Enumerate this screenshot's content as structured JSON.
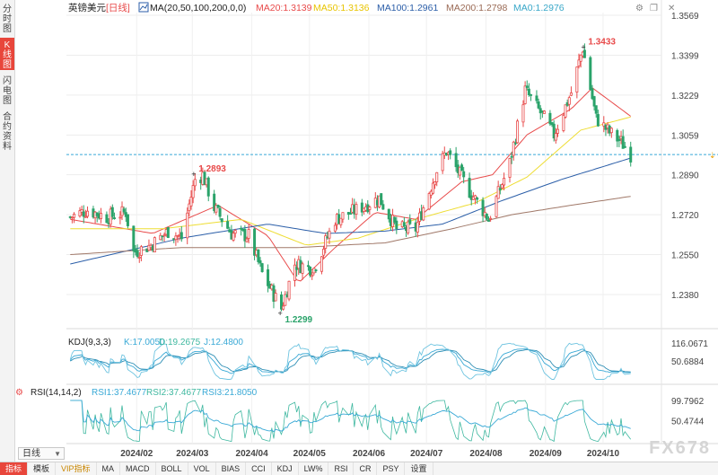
{
  "side_tabs": [
    {
      "label": "分时图",
      "active": false
    },
    {
      "label": "K线图",
      "active": true
    },
    {
      "label": "闪电图",
      "active": false
    },
    {
      "label": "合约资料",
      "active": false
    }
  ],
  "legend": {
    "symbol": "英镑美元",
    "period": "[日线]",
    "ma_params": "MA(20,50,100,200,0,0)",
    "items": [
      {
        "label": "MA20:1.3139",
        "color": "#e84a4a"
      },
      {
        "label": "MA50:1.3136",
        "color": "#e8c400"
      },
      {
        "label": "MA100:1.2961",
        "color": "#2b5ea8"
      },
      {
        "label": "MA200:1.2798",
        "color": "#9a6a55"
      },
      {
        "label": "MA0:1.2976",
        "color": "#38a7c8"
      }
    ]
  },
  "toolbar_icons": [
    "settings-icon",
    "restore-icon",
    "close-icon"
  ],
  "annotations": {
    "high": "1.3433",
    "low": "1.2299",
    "prev_high": "1.2893"
  },
  "colors": {
    "up": "#e84a4a",
    "down": "#2aa36a",
    "ma20": "#e84a4a",
    "ma50": "#eedd33",
    "ma100": "#2b5ea8",
    "ma200": "#a07868",
    "kdj_k": "#39a9d6",
    "kdj_d": "#2f8fb5",
    "kdj_j": "#6fc4e0",
    "rsi1": "#39a9d6",
    "rsi2": "#2f8fb5",
    "rsi3": "#3fb8a0"
  },
  "chart_data": [
    {
      "type": "candlestick",
      "title": "英镑美元 [日线]",
      "ylim": [
        1.238,
        1.3569
      ],
      "y_ticks": [
        "1.3569",
        "1.3399",
        "1.3229",
        "1.3059",
        "1.2890",
        "1.2720",
        "1.2550",
        "1.2380"
      ],
      "x_ticks": [
        "2024/02",
        "2024/03",
        "2024/04",
        "2024/05",
        "2024/06",
        "2024/07",
        "2024/08",
        "2024/09",
        "2024/10"
      ],
      "last_close": 1.2976,
      "close_path": [
        [
          "2024/01/03",
          1.271
        ],
        [
          "2024/01/12",
          1.274
        ],
        [
          "2024/01/22",
          1.271
        ],
        [
          "2024/02/01",
          1.273
        ],
        [
          "2024/02/05",
          1.256
        ],
        [
          "2024/02/14",
          1.259
        ],
        [
          "2024/02/23",
          1.265
        ],
        [
          "2024/03/01",
          1.262
        ],
        [
          "2024/03/08",
          1.287
        ],
        [
          "2024/03/12",
          1.289
        ],
        [
          "2024/03/18",
          1.275
        ],
        [
          "2024/03/27",
          1.264
        ],
        [
          "2024/04/05",
          1.263
        ],
        [
          "2024/04/12",
          1.247
        ],
        [
          "2024/04/22",
          1.232
        ],
        [
          "2024/04/29",
          1.251
        ],
        [
          "2024/05/09",
          1.249
        ],
        [
          "2024/05/20",
          1.27
        ],
        [
          "2024/05/31",
          1.274
        ],
        [
          "2024/06/12",
          1.279
        ],
        [
          "2024/06/21",
          1.266
        ],
        [
          "2024/07/01",
          1.266
        ],
        [
          "2024/07/12",
          1.291
        ],
        [
          "2024/07/17",
          1.299
        ],
        [
          "2024/07/29",
          1.282
        ],
        [
          "2024/08/05",
          1.274
        ],
        [
          "2024/08/08",
          1.27
        ],
        [
          "2024/08/19",
          1.294
        ],
        [
          "2024/08/27",
          1.325
        ],
        [
          "2024/09/06",
          1.313
        ],
        [
          "2024/09/11",
          1.306
        ],
        [
          "2024/09/20",
          1.324
        ],
        [
          "2024/09/26",
          1.343
        ],
        [
          "2024/10/03",
          1.313
        ],
        [
          "2024/10/10",
          1.307
        ],
        [
          "2024/10/16",
          1.303
        ],
        [
          "2024/10/21",
          1.2976
        ]
      ],
      "ma_path": {
        "MA20": [
          [
            "2024/01/03",
            1.27
          ],
          [
            "2024/02/15",
            1.264
          ],
          [
            "2024/03/20",
            1.276
          ],
          [
            "2024/04/15",
            1.263
          ],
          [
            "2024/05/01",
            1.243
          ],
          [
            "2024/05/20",
            1.258
          ],
          [
            "2024/06/10",
            1.273
          ],
          [
            "2024/07/01",
            1.27
          ],
          [
            "2024/07/25",
            1.286
          ],
          [
            "2024/08/10",
            1.289
          ],
          [
            "2024/08/28",
            1.306
          ],
          [
            "2024/09/20",
            1.317
          ],
          [
            "2024/10/01",
            1.326
          ],
          [
            "2024/10/21",
            1.3139
          ]
        ],
        "MA50": [
          [
            "2024/01/03",
            1.266
          ],
          [
            "2024/02/20",
            1.266
          ],
          [
            "2024/04/01",
            1.27
          ],
          [
            "2024/05/05",
            1.259
          ],
          [
            "2024/06/01",
            1.262
          ],
          [
            "2024/07/01",
            1.27
          ],
          [
            "2024/08/01",
            1.277
          ],
          [
            "2024/08/28",
            1.288
          ],
          [
            "2024/09/25",
            1.308
          ],
          [
            "2024/10/21",
            1.3136
          ]
        ],
        "MA100": [
          [
            "2024/01/03",
            1.251
          ],
          [
            "2024/03/01",
            1.262
          ],
          [
            "2024/04/15",
            1.268
          ],
          [
            "2024/05/15",
            1.264
          ],
          [
            "2024/06/15",
            1.265
          ],
          [
            "2024/07/15",
            1.268
          ],
          [
            "2024/08/15",
            1.278
          ],
          [
            "2024/09/15",
            1.287
          ],
          [
            "2024/10/21",
            1.2961
          ]
        ],
        "MA200": [
          [
            "2024/01/03",
            1.255
          ],
          [
            "2024/03/01",
            1.258
          ],
          [
            "2024/05/01",
            1.258
          ],
          [
            "2024/06/15",
            1.26
          ],
          [
            "2024/07/20",
            1.266
          ],
          [
            "2024/08/20",
            1.272
          ],
          [
            "2024/09/20",
            1.276
          ],
          [
            "2024/10/21",
            1.2798
          ]
        ]
      }
    },
    {
      "type": "line",
      "title": "KDJ(9,3,3)",
      "legend": [
        {
          "name": "K:17.0050"
        },
        {
          "name": "D:19.2675"
        },
        {
          "name": "J:12.4800"
        }
      ],
      "y_ticks": [
        "116.0671",
        "50.6884"
      ],
      "ylim": [
        -20,
        116.0671
      ]
    },
    {
      "type": "line",
      "title": "RSI(14,14,2)",
      "legend": [
        {
          "name": "RSI1:37.4677"
        },
        {
          "name": "RSI2:37.4677"
        },
        {
          "name": "RSI3:21.8050"
        }
      ],
      "y_ticks": [
        "99.7962",
        "50.4744"
      ],
      "ylim": [
        0,
        99.7962
      ]
    }
  ],
  "bottom_tabs": [
    {
      "label": "指标",
      "active": true,
      "vip": false
    },
    {
      "label": "模板",
      "active": false,
      "vip": false
    },
    {
      "label": "VIP指标",
      "active": false,
      "vip": true
    },
    {
      "label": "MA",
      "active": false,
      "vip": false
    },
    {
      "label": "MACD",
      "active": false,
      "vip": false
    },
    {
      "label": "BOLL",
      "active": false,
      "vip": false
    },
    {
      "label": "VOL",
      "active": false,
      "vip": false
    },
    {
      "label": "BIAS",
      "active": false,
      "vip": false
    },
    {
      "label": "CCI",
      "active": false,
      "vip": false
    },
    {
      "label": "KDJ",
      "active": false,
      "vip": false
    },
    {
      "label": "LW%",
      "active": false,
      "vip": false
    },
    {
      "label": "RSI",
      "active": false,
      "vip": false
    },
    {
      "label": "CR",
      "active": false,
      "vip": false
    },
    {
      "label": "PSY",
      "active": false,
      "vip": false
    },
    {
      "label": "设置",
      "active": false,
      "vip": false
    }
  ],
  "period_select": {
    "value": "日线"
  },
  "watermark": "FX678"
}
